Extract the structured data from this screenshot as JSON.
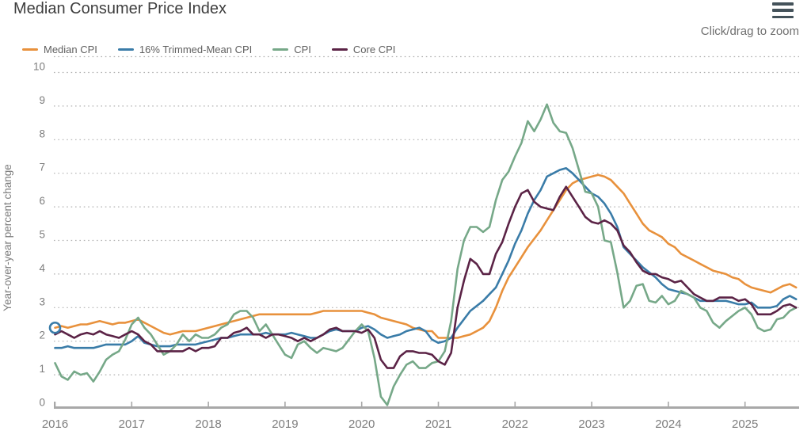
{
  "header": {
    "title": "Median Consumer Price Index",
    "zoom_hint": "Click/drag to zoom",
    "menu_icon": "hamburger-icon"
  },
  "legend": [
    {
      "label": "Median CPI",
      "color": "#E8913C"
    },
    {
      "label": "16% Trimmed-Mean CPI",
      "color": "#3A7CA8"
    },
    {
      "label": "CPI",
      "color": "#76A888"
    },
    {
      "label": "Core CPI",
      "color": "#5B2346"
    }
  ],
  "chart_data": {
    "type": "line",
    "title": "Median Consumer Price Index",
    "xlabel": "",
    "ylabel": "Year-over-year percent change",
    "x_start": "2016-01",
    "x_end": "2025-09",
    "frequency": "monthly",
    "xticks": [
      "2016",
      "2017",
      "2018",
      "2019",
      "2020",
      "2021",
      "2022",
      "2023",
      "2024",
      "2025"
    ],
    "yticks": [
      0,
      1,
      2,
      3,
      4,
      5,
      6,
      7,
      8,
      9,
      10
    ],
    "ylim": [
      0,
      10
    ],
    "grid": "dotted-horizontal",
    "legend_position": "top-left",
    "axis_color": "#a8a8a8",
    "grid_color": "#b1b1b1",
    "tick_label_color": "#7d7d7d",
    "start_marker": {
      "month_index": 0,
      "value": 2.4,
      "stroke": "#3A7CA8"
    },
    "series": [
      {
        "name": "Median CPI",
        "color": "#E8913C",
        "values": [
          2.4,
          2.45,
          2.4,
          2.45,
          2.5,
          2.5,
          2.55,
          2.6,
          2.55,
          2.5,
          2.55,
          2.55,
          2.6,
          2.65,
          2.55,
          2.45,
          2.35,
          2.25,
          2.2,
          2.25,
          2.3,
          2.3,
          2.3,
          2.35,
          2.4,
          2.45,
          2.5,
          2.55,
          2.6,
          2.65,
          2.7,
          2.75,
          2.8,
          2.8,
          2.8,
          2.8,
          2.8,
          2.8,
          2.8,
          2.8,
          2.8,
          2.85,
          2.9,
          2.9,
          2.9,
          2.9,
          2.9,
          2.9,
          2.9,
          2.85,
          2.8,
          2.7,
          2.65,
          2.6,
          2.55,
          2.5,
          2.4,
          2.35,
          2.3,
          2.3,
          2.1,
          2.1,
          2.1,
          2.1,
          2.15,
          2.2,
          2.3,
          2.4,
          2.6,
          3.0,
          3.5,
          3.9,
          4.2,
          4.5,
          4.8,
          5.05,
          5.3,
          5.6,
          5.9,
          6.2,
          6.5,
          6.7,
          6.8,
          6.85,
          6.9,
          6.95,
          6.9,
          6.8,
          6.6,
          6.4,
          6.1,
          5.8,
          5.5,
          5.3,
          5.2,
          5.1,
          4.9,
          4.8,
          4.6,
          4.5,
          4.4,
          4.3,
          4.2,
          4.1,
          4.05,
          4.0,
          3.9,
          3.85,
          3.7,
          3.6,
          3.55,
          3.5,
          3.45,
          3.55,
          3.65,
          3.7,
          3.6
        ]
      },
      {
        "name": "16% Trimmed-Mean CPI",
        "color": "#3A7CA8",
        "values": [
          1.8,
          1.8,
          1.85,
          1.8,
          1.8,
          1.8,
          1.8,
          1.85,
          1.9,
          1.9,
          1.9,
          1.9,
          2.0,
          2.15,
          1.95,
          1.9,
          1.85,
          1.85,
          1.85,
          1.9,
          1.9,
          1.9,
          1.9,
          1.95,
          2.0,
          2.05,
          2.1,
          2.1,
          2.15,
          2.2,
          2.2,
          2.2,
          2.2,
          2.25,
          2.2,
          2.2,
          2.2,
          2.25,
          2.2,
          2.15,
          2.1,
          2.1,
          2.2,
          2.3,
          2.35,
          2.3,
          2.3,
          2.3,
          2.4,
          2.45,
          2.35,
          2.2,
          2.1,
          2.15,
          2.2,
          2.3,
          2.35,
          2.4,
          2.3,
          2.05,
          1.95,
          2.0,
          2.1,
          2.4,
          2.65,
          2.9,
          3.05,
          3.2,
          3.4,
          3.6,
          4.0,
          4.4,
          4.9,
          5.3,
          5.8,
          6.2,
          6.5,
          6.9,
          7.0,
          7.1,
          7.15,
          7.0,
          6.8,
          6.6,
          6.4,
          6.3,
          6.1,
          5.8,
          5.4,
          4.8,
          4.6,
          4.4,
          4.2,
          4.05,
          3.9,
          3.7,
          3.55,
          3.5,
          3.45,
          3.4,
          3.3,
          3.2,
          3.2,
          3.2,
          3.2,
          3.2,
          3.15,
          3.1,
          3.1,
          3.15,
          3.0,
          3.0,
          3.0,
          3.05,
          3.25,
          3.35,
          3.25
        ]
      },
      {
        "name": "CPI",
        "color": "#76A888",
        "values": [
          1.35,
          0.95,
          0.85,
          1.1,
          1.0,
          1.05,
          0.8,
          1.1,
          1.45,
          1.6,
          1.7,
          2.05,
          2.5,
          2.7,
          2.4,
          2.2,
          1.9,
          1.6,
          1.7,
          1.9,
          2.2,
          2.0,
          2.2,
          2.1,
          2.1,
          2.2,
          2.4,
          2.5,
          2.8,
          2.9,
          2.9,
          2.7,
          2.3,
          2.5,
          2.2,
          1.9,
          1.6,
          1.5,
          1.9,
          2.0,
          1.8,
          1.65,
          1.8,
          1.75,
          1.7,
          1.8,
          2.05,
          2.3,
          2.5,
          2.3,
          1.5,
          0.35,
          0.1,
          0.65,
          1.0,
          1.3,
          1.4,
          1.2,
          1.2,
          1.35,
          1.4,
          1.7,
          2.6,
          4.15,
          5.0,
          5.4,
          5.4,
          5.25,
          5.4,
          6.2,
          6.8,
          7.05,
          7.5,
          7.9,
          8.55,
          8.25,
          8.6,
          9.05,
          8.5,
          8.25,
          8.2,
          7.75,
          7.1,
          6.45,
          6.4,
          6.0,
          5.0,
          4.95,
          4.05,
          3.0,
          3.2,
          3.65,
          3.7,
          3.2,
          3.15,
          3.35,
          3.1,
          3.2,
          3.5,
          3.4,
          3.3,
          3.0,
          2.9,
          2.55,
          2.4,
          2.6,
          2.75,
          2.9,
          3.0,
          2.8,
          2.4,
          2.3,
          2.35,
          2.65,
          2.7,
          2.9,
          3.0
        ]
      },
      {
        "name": "Core CPI",
        "color": "#5B2346",
        "values": [
          2.2,
          2.3,
          2.2,
          2.1,
          2.2,
          2.25,
          2.2,
          2.3,
          2.2,
          2.15,
          2.1,
          2.2,
          2.3,
          2.2,
          2.0,
          1.9,
          1.7,
          1.7,
          1.7,
          1.7,
          1.7,
          1.8,
          1.7,
          1.8,
          1.8,
          1.85,
          2.1,
          2.1,
          2.25,
          2.3,
          2.4,
          2.2,
          2.2,
          2.1,
          2.2,
          2.2,
          2.15,
          2.1,
          2.0,
          2.1,
          2.0,
          2.1,
          2.2,
          2.35,
          2.4,
          2.3,
          2.3,
          2.3,
          2.25,
          2.35,
          2.1,
          1.45,
          1.2,
          1.2,
          1.55,
          1.7,
          1.7,
          1.65,
          1.65,
          1.6,
          1.4,
          1.3,
          1.65,
          3.0,
          3.8,
          4.45,
          4.3,
          4.0,
          4.0,
          4.6,
          4.95,
          5.5,
          6.0,
          6.4,
          6.5,
          6.15,
          6.0,
          5.95,
          5.9,
          6.3,
          6.6,
          6.3,
          6.0,
          5.7,
          5.55,
          5.5,
          5.6,
          5.5,
          5.3,
          4.85,
          4.65,
          4.35,
          4.1,
          4.0,
          4.0,
          3.9,
          3.85,
          3.75,
          3.8,
          3.6,
          3.4,
          3.3,
          3.2,
          3.2,
          3.3,
          3.3,
          3.3,
          3.2,
          3.25,
          3.1,
          2.8,
          2.8,
          2.8,
          2.9,
          3.05,
          3.1,
          3.0
        ]
      }
    ]
  }
}
